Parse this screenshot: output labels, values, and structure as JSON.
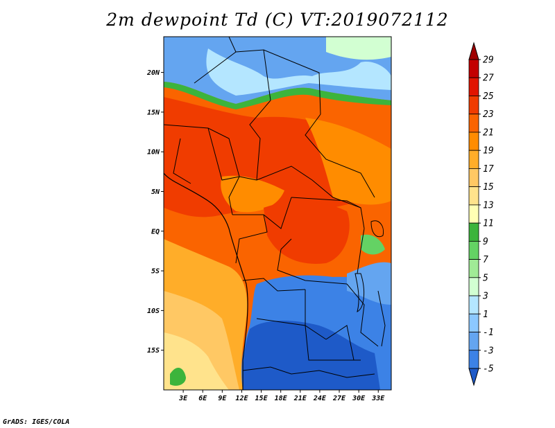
{
  "figure": {
    "title": "2m dewpoint Td (C) VT:2019072112",
    "credit": "GrADS: IGES/COLA"
  },
  "map": {
    "lat_labels": [
      "20N",
      "15N",
      "10N",
      "5N",
      "EQ",
      "5S",
      "10S",
      "15S"
    ],
    "lat_values": [
      20,
      15,
      10,
      5,
      0,
      -5,
      -10,
      -15
    ],
    "lon_labels": [
      "3E",
      "6E",
      "9E",
      "12E",
      "15E",
      "18E",
      "21E",
      "24E",
      "27E",
      "30E",
      "33E"
    ],
    "lon_values": [
      3,
      6,
      9,
      12,
      15,
      18,
      21,
      24,
      27,
      30,
      33
    ],
    "lon_range": [
      0,
      35
    ],
    "lat_range": [
      -20,
      24.5
    ]
  },
  "colorbar": {
    "labels": [
      "29",
      "27",
      "25",
      "23",
      "21",
      "19",
      "17",
      "15",
      "13",
      "11",
      "9",
      "7",
      "5",
      "3",
      "1",
      "-1",
      "-3",
      "-5"
    ],
    "colors": [
      "#a00000",
      "#c30000",
      "#e11400",
      "#f03c00",
      "#fa6400",
      "#ff8c00",
      "#ffad29",
      "#ffc864",
      "#ffe38c",
      "#ffffb4",
      "#3cb43c",
      "#64d264",
      "#a0eb96",
      "#d2ffd2",
      "#b4e6ff",
      "#8cc8ff",
      "#64a5f0",
      "#3c82e6",
      "#1e5ac8"
    ]
  },
  "regions": {
    "north_blue_colors": [
      "#64a5f0",
      "#b4e6ff",
      "#d2ffd2"
    ],
    "sahel_colors": [
      "#fa6400",
      "#f03c00",
      "#ff8c00"
    ],
    "southwest_colors": [
      "#ffad29",
      "#ffc864",
      "#ffe38c"
    ],
    "south_blue_colors": [
      "#1e5ac8",
      "#3c82e6",
      "#64a5f0"
    ]
  }
}
